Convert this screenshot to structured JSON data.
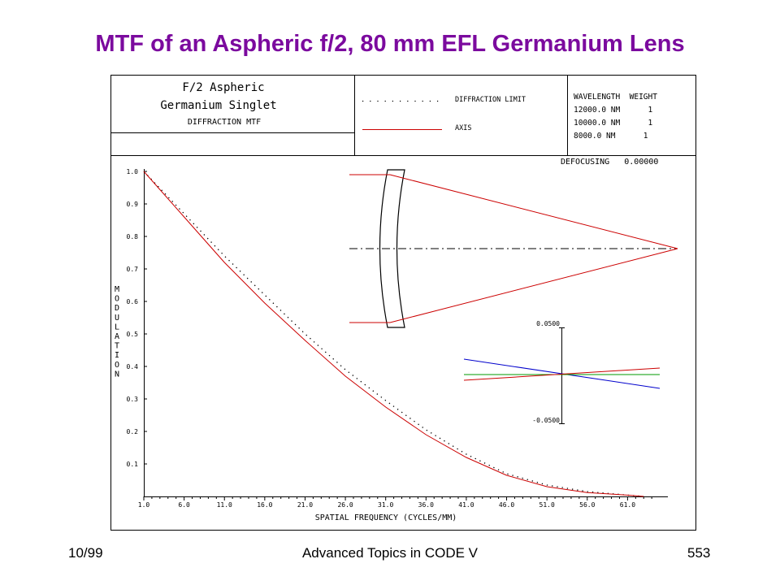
{
  "slide": {
    "title": "MTF of an Aspheric f/2, 80 mm EFL Germanium Lens",
    "title_color": "#7B0A9E",
    "footer_left": "10/99",
    "footer_center": "Advanced Topics in CODE V",
    "footer_right": "553"
  },
  "header": {
    "line1": "F/2 Aspheric",
    "line2": "Germanium Singlet",
    "line3": "DIFFRACTION MTF",
    "legend_diffraction": "DIFFRACTION LIMIT",
    "legend_axis": "AXIS",
    "wavelength_header": "WAVELENGTH  WEIGHT",
    "wavelengths": [
      "12000.0 NM      1",
      "10000.0 NM      1",
      "8000.0 NM      1"
    ],
    "defocusing": "DEFOCUSING   0.00000"
  },
  "chart_data": {
    "type": "line",
    "xlabel": "SPATIAL FREQUENCY (CYCLES/MM)",
    "ylabel": "MODULATION",
    "xlim": [
      1.0,
      66.0
    ],
    "ylim": [
      0.0,
      1.0
    ],
    "x_ticks": [
      "1.0",
      "6.0",
      "11.0",
      "16.0",
      "21.0",
      "26.0",
      "31.0",
      "36.0",
      "41.0",
      "46.0",
      "51.0",
      "56.0",
      "61.0"
    ],
    "y_ticks": [
      "1.0",
      "0.9",
      "0.8",
      "0.7",
      "0.6",
      "0.5",
      "0.4",
      "0.3",
      "0.2",
      "0.1"
    ],
    "series": [
      {
        "name": "DIFFRACTION LIMIT",
        "style": "dotted",
        "color": "#000000",
        "x": [
          1,
          6,
          11,
          16,
          21,
          26,
          31,
          36,
          41,
          46,
          51,
          56,
          61,
          63
        ],
        "y": [
          1.0,
          0.87,
          0.74,
          0.62,
          0.5,
          0.39,
          0.295,
          0.205,
          0.13,
          0.07,
          0.035,
          0.015,
          0.004,
          0.0
        ]
      },
      {
        "name": "AXIS",
        "style": "solid",
        "color": "#CC0000",
        "x": [
          1,
          6,
          11,
          16,
          21,
          26,
          31,
          36,
          41,
          46,
          51,
          56,
          61,
          63
        ],
        "y": [
          1.0,
          0.86,
          0.72,
          0.595,
          0.48,
          0.37,
          0.275,
          0.19,
          0.12,
          0.065,
          0.03,
          0.012,
          0.004,
          0.0
        ]
      }
    ],
    "inset": {
      "top_label": "0.0500",
      "bottom_label": "-0.0500",
      "ray_colors": [
        "#0000CC",
        "#009900",
        "#CC0000"
      ]
    }
  }
}
